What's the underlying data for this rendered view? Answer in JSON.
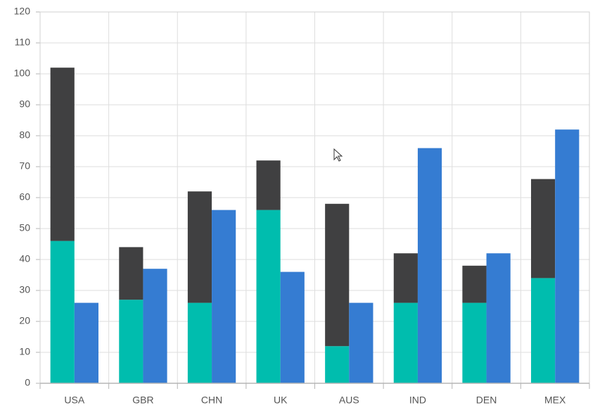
{
  "chart_data": {
    "type": "bar",
    "categories": [
      "USA",
      "GBR",
      "CHN",
      "UK",
      "AUS",
      "IND",
      "DEN",
      "MEX"
    ],
    "series": [
      {
        "color": "#00bdae",
        "values": [
          46,
          27,
          26,
          56,
          12,
          26,
          26,
          34
        ]
      },
      {
        "color": "#404041",
        "values": [
          56,
          17,
          36,
          16,
          46,
          16,
          12,
          32
        ]
      },
      {
        "color": "#357cd2",
        "values": [
          26,
          37,
          56,
          36,
          26,
          76,
          42,
          82
        ]
      }
    ],
    "stacked_groups": [
      [
        0,
        1
      ],
      [
        2
      ]
    ],
    "ylim": [
      0,
      120
    ],
    "yticks": [
      0,
      10,
      20,
      30,
      40,
      50,
      60,
      70,
      80,
      90,
      100,
      110,
      120
    ],
    "grid": true
  }
}
